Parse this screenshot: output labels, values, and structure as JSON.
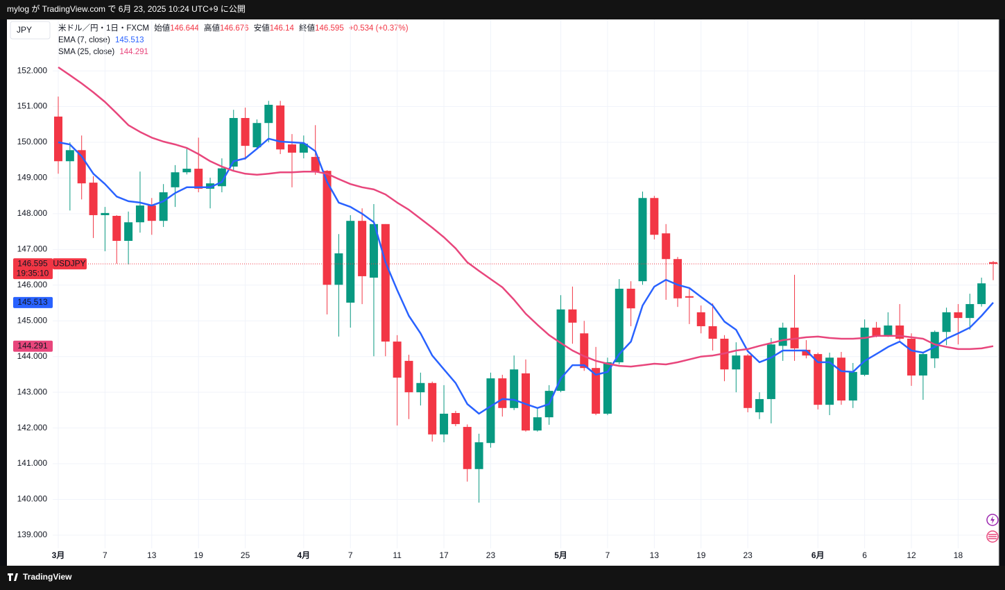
{
  "header": {
    "text": "mylog が TradingView.com で 6月 23, 2025 10:24 UTC+9 に公開"
  },
  "footer": {
    "brand": "TradingView"
  },
  "chart_data": {
    "type": "candlestick",
    "currency": "JPY",
    "symbol": "米ドル／円・1日・FXCM",
    "ticker": "USDJPY",
    "ohlc_labels": [
      "始値",
      "高値",
      "安値",
      "終値"
    ],
    "change": "+0.534 (+0.37%)",
    "countdown": "19:35:10",
    "up_color": "#089981",
    "down_color": "#f23645",
    "grid": true,
    "ylim": [
      138.63,
      153.44
    ],
    "yticks": [
      {
        "value": 139,
        "label": "139.000"
      },
      {
        "value": 140,
        "label": "140.000"
      },
      {
        "value": 141,
        "label": "141.000"
      },
      {
        "value": 142,
        "label": "142.000"
      },
      {
        "value": 143,
        "label": "143.000"
      },
      {
        "value": 144,
        "label": "144.000"
      },
      {
        "value": 145,
        "label": "145.000"
      },
      {
        "value": 146,
        "label": "146.000"
      },
      {
        "value": 147,
        "label": "147.000"
      },
      {
        "value": 148,
        "label": "148.000"
      },
      {
        "value": 149,
        "label": "149.000"
      },
      {
        "value": 150,
        "label": "150.000"
      },
      {
        "value": 151,
        "label": "151.000"
      },
      {
        "value": 152,
        "label": "152.000"
      }
    ],
    "categories": [
      "3月",
      null,
      null,
      null,
      "7",
      null,
      null,
      null,
      "13",
      null,
      null,
      null,
      "19",
      null,
      null,
      null,
      "25",
      null,
      null,
      null,
      null,
      "4月",
      null,
      null,
      null,
      "7",
      null,
      null,
      null,
      "11",
      null,
      null,
      null,
      "17",
      null,
      null,
      null,
      "23",
      null,
      null,
      null,
      null,
      null,
      "5月",
      null,
      null,
      null,
      "7",
      null,
      null,
      null,
      "13",
      null,
      null,
      null,
      "19",
      null,
      null,
      null,
      "23",
      null,
      null,
      null,
      null,
      null,
      "6月",
      null,
      null,
      null,
      "6",
      null,
      null,
      null,
      "12",
      null,
      null,
      null,
      "18",
      null,
      null,
      null
    ],
    "open": [
      150.72,
      149.47,
      149.78,
      148.87,
      147.96,
      147.94,
      147.24,
      147.76,
      148.23,
      147.8,
      148.74,
      149.16,
      149.26,
      148.7,
      148.77,
      149.32,
      150.68,
      149.86,
      150.54,
      151.03,
      149.94,
      149.71,
      149.59,
      149.2,
      146.01,
      145.51,
      147.8,
      146.21,
      147.71,
      144.42,
      143.88,
      143.0,
      143.26,
      141.82,
      142.42,
      142.03,
      140.85,
      141.58,
      143.39,
      142.56,
      143.53,
      141.93,
      142.3,
      143.04,
      145.32,
      144.65,
      143.68,
      142.4,
      143.84,
      145.9,
      146.11,
      148.44,
      147.45,
      146.73,
      145.69,
      145.24,
      144.85,
      144.5,
      143.64,
      144.03,
      142.44,
      142.81,
      144.3,
      144.81,
      144.19,
      144.07,
      142.65,
      143.97,
      142.77,
      143.49,
      144.81,
      144.58,
      144.87,
      144.5,
      143.47,
      143.95,
      144.69,
      145.24,
      145.08,
      145.47,
      146.644
    ],
    "high": [
      151.28,
      150.0,
      150.19,
      149.05,
      148.19,
      147.96,
      148.06,
      149.18,
      148.44,
      148.83,
      149.36,
      149.84,
      150.13,
      149.01,
      149.55,
      150.91,
      150.97,
      150.64,
      151.16,
      151.16,
      150.23,
      150.19,
      150.48,
      149.22,
      147.43,
      147.96,
      148.15,
      148.27,
      147.71,
      144.6,
      144.05,
      143.55,
      143.3,
      143.2,
      142.48,
      142.1,
      141.84,
      143.55,
      143.49,
      144.03,
      143.92,
      142.56,
      143.2,
      145.72,
      145.96,
      145.0,
      144.27,
      143.97,
      146.17,
      146.11,
      148.62,
      148.5,
      147.71,
      146.79,
      145.92,
      145.43,
      145.49,
      144.6,
      144.4,
      144.07,
      143.0,
      144.52,
      144.95,
      146.29,
      144.46,
      144.11,
      144.11,
      144.13,
      143.82,
      145.04,
      144.97,
      145.24,
      145.47,
      144.65,
      144.13,
      144.73,
      145.37,
      145.47,
      145.76,
      146.21,
      146.676
    ],
    "low": [
      149.12,
      148.09,
      148.4,
      147.32,
      146.95,
      146.6,
      146.58,
      147.47,
      147.41,
      147.63,
      148.19,
      149.1,
      148.6,
      148.15,
      148.6,
      149.22,
      149.51,
      149.8,
      150.0,
      149.67,
      148.74,
      149.55,
      149.09,
      145.18,
      144.56,
      144.81,
      145.47,
      144.01,
      144.01,
      142.07,
      142.25,
      142.63,
      141.62,
      141.6,
      142.05,
      140.5,
      139.91,
      141.45,
      142.32,
      142.5,
      141.9,
      141.9,
      142.09,
      143.0,
      144.36,
      143.6,
      142.36,
      142.36,
      143.78,
      144.85,
      146.01,
      147.28,
      145.59,
      145.39,
      144.91,
      144.65,
      144.17,
      143.31,
      143.0,
      142.44,
      142.25,
      142.13,
      143.88,
      143.88,
      143.95,
      142.52,
      142.36,
      142.65,
      142.56,
      143.45,
      144.54,
      144.55,
      144.45,
      143.18,
      142.79,
      143.68,
      144.32,
      144.34,
      144.75,
      145.4,
      146.14
    ],
    "close": [
      149.47,
      149.78,
      148.85,
      147.96,
      148.02,
      147.24,
      147.76,
      148.23,
      147.8,
      148.6,
      149.16,
      149.26,
      148.7,
      148.85,
      149.27,
      150.68,
      149.9,
      150.54,
      151.05,
      149.8,
      149.71,
      149.96,
      149.16,
      146.01,
      146.89,
      147.8,
      146.25,
      147.71,
      144.42,
      143.41,
      143.0,
      143.26,
      141.82,
      142.4,
      142.11,
      140.85,
      141.6,
      143.39,
      142.56,
      143.64,
      141.93,
      142.3,
      143.04,
      145.32,
      144.95,
      143.68,
      142.4,
      143.84,
      145.9,
      145.35,
      148.44,
      147.41,
      146.73,
      145.63,
      145.65,
      144.85,
      144.5,
      143.64,
      144.03,
      142.56,
      142.81,
      144.34,
      144.81,
      144.23,
      144.03,
      142.65,
      143.97,
      142.77,
      143.57,
      144.81,
      144.58,
      144.87,
      144.5,
      143.47,
      144.07,
      144.69,
      145.24,
      145.08,
      145.47,
      146.05,
      146.595
    ],
    "series": [
      {
        "name": "EMA (7, close)",
        "color": "#2962ff",
        "values": [
          150.0,
          149.94,
          149.61,
          149.12,
          148.83,
          148.48,
          148.35,
          148.31,
          148.23,
          148.35,
          148.58,
          148.74,
          148.74,
          148.74,
          148.89,
          149.47,
          149.55,
          149.82,
          150.1,
          150.02,
          150.0,
          149.98,
          149.75,
          148.89,
          148.31,
          148.19,
          148.0,
          147.76,
          146.64,
          145.86,
          145.14,
          144.65,
          144.03,
          143.64,
          143.26,
          142.67,
          142.4,
          142.61,
          142.81,
          142.79,
          142.67,
          142.56,
          142.67,
          143.39,
          143.76,
          143.76,
          143.49,
          143.57,
          144.07,
          144.42,
          145.43,
          145.96,
          146.15,
          146.01,
          145.92,
          145.67,
          145.43,
          144.98,
          144.75,
          144.15,
          143.84,
          143.97,
          144.17,
          144.17,
          144.17,
          143.84,
          143.84,
          143.59,
          143.57,
          143.88,
          144.07,
          144.27,
          144.42,
          144.17,
          144.11,
          144.27,
          144.5,
          144.65,
          144.81,
          145.14,
          145.513
        ]
      },
      {
        "name": "SMA (25, close)",
        "color": "#e8467c",
        "values": [
          152.1,
          151.88,
          151.65,
          151.4,
          151.13,
          150.81,
          150.48,
          150.29,
          150.13,
          150.02,
          149.94,
          149.84,
          149.67,
          149.47,
          149.32,
          149.2,
          149.12,
          149.09,
          149.12,
          149.16,
          149.16,
          149.18,
          149.18,
          149.12,
          148.97,
          148.83,
          148.74,
          148.68,
          148.54,
          148.31,
          148.11,
          147.86,
          147.61,
          147.34,
          147.03,
          146.64,
          146.4,
          146.17,
          145.94,
          145.59,
          145.2,
          144.89,
          144.6,
          144.38,
          144.17,
          144.01,
          143.88,
          143.8,
          143.74,
          143.72,
          143.76,
          143.8,
          143.78,
          143.84,
          143.92,
          144.0,
          144.03,
          144.09,
          144.17,
          144.21,
          144.3,
          144.38,
          144.46,
          144.5,
          144.54,
          144.56,
          144.52,
          144.5,
          144.5,
          144.52,
          144.58,
          144.58,
          144.58,
          144.54,
          144.5,
          144.34,
          144.27,
          144.21,
          144.21,
          144.23,
          144.291
        ]
      }
    ]
  }
}
